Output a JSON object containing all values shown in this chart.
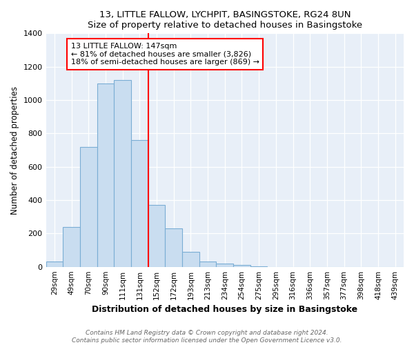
{
  "title": "13, LITTLE FALLOW, LYCHPIT, BASINGSTOKE, RG24 8UN",
  "subtitle": "Size of property relative to detached houses in Basingstoke",
  "xlabel": "Distribution of detached houses by size in Basingstoke",
  "ylabel": "Number of detached properties",
  "categories": [
    "29sqm",
    "49sqm",
    "70sqm",
    "90sqm",
    "111sqm",
    "131sqm",
    "152sqm",
    "172sqm",
    "193sqm",
    "213sqm",
    "234sqm",
    "254sqm",
    "275sqm",
    "295sqm",
    "316sqm",
    "336sqm",
    "357sqm",
    "377sqm",
    "398sqm",
    "418sqm",
    "439sqm"
  ],
  "values": [
    30,
    240,
    720,
    1100,
    1120,
    760,
    370,
    230,
    90,
    30,
    20,
    10,
    3,
    0,
    0,
    0,
    0,
    0,
    0,
    0,
    0
  ],
  "bar_color": "#c9ddf0",
  "bar_edge_color": "#7aadd4",
  "property_label": "13 LITTLE FALLOW: 147sqm",
  "annotation_line1": "← 81% of detached houses are smaller (3,826)",
  "annotation_line2": "18% of semi-detached houses are larger (869) →",
  "vline_index": 6,
  "ylim": [
    0,
    1400
  ],
  "yticks": [
    0,
    200,
    400,
    600,
    800,
    1000,
    1200,
    1400
  ],
  "footnote1": "Contains HM Land Registry data © Crown copyright and database right 2024.",
  "footnote2": "Contains public sector information licensed under the Open Government Licence v3.0.",
  "plot_bg_color": "#e8eff8"
}
